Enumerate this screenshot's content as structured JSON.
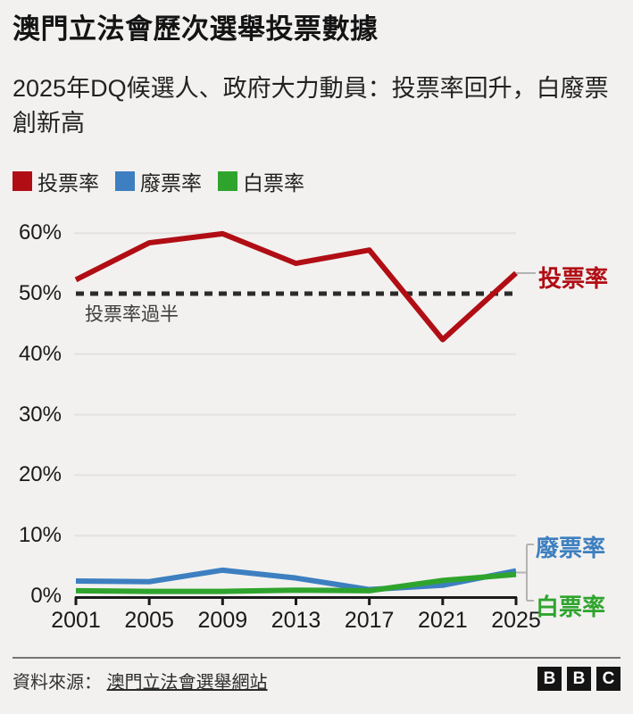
{
  "header": {
    "title": "澳門立法會歷次選舉投票數據",
    "subtitle": "2025年DQ候選人、政府大力動員：投票率回升，白廢票創新高"
  },
  "legend": [
    {
      "label": "投票率",
      "color": "#b10d15"
    },
    {
      "label": "廢票率",
      "color": "#3d7fc0"
    },
    {
      "label": "白票率",
      "color": "#2fa42d"
    }
  ],
  "chart_data": {
    "type": "line",
    "x": [
      2001,
      2005,
      2009,
      2013,
      2017,
      2021,
      2025
    ],
    "series": [
      {
        "name": "投票率",
        "color": "#b10d15",
        "values": [
          52.3,
          58.4,
          59.9,
          55.0,
          57.2,
          42.4,
          53.4
        ]
      },
      {
        "name": "廢票率",
        "color": "#3d7fc0",
        "values": [
          2.5,
          2.4,
          4.3,
          3.0,
          1.1,
          1.8,
          4.2
        ]
      },
      {
        "name": "白票率",
        "color": "#2fa42d",
        "values": [
          0.9,
          0.8,
          0.8,
          1.0,
          0.9,
          2.6,
          3.6
        ]
      }
    ],
    "ylim": [
      0,
      60
    ],
    "yticks": [
      0,
      10,
      20,
      30,
      40,
      50,
      60
    ],
    "ytick_suffix": "%",
    "grid": "horizontal",
    "legend_position": "top",
    "reference_line": {
      "value": 50,
      "label": "投票率過半",
      "style": "dashed",
      "color": "#2b2b2b"
    }
  },
  "colors": {
    "background": "#f2f1ef",
    "gridline": "#e3e2e0",
    "axis": "#1a1a1a",
    "connector": "#b3b3b3"
  },
  "footer": {
    "source_label": "資料來源：",
    "source_link": "澳門立法會選舉網站",
    "logo_letters": [
      "B",
      "B",
      "C"
    ]
  }
}
